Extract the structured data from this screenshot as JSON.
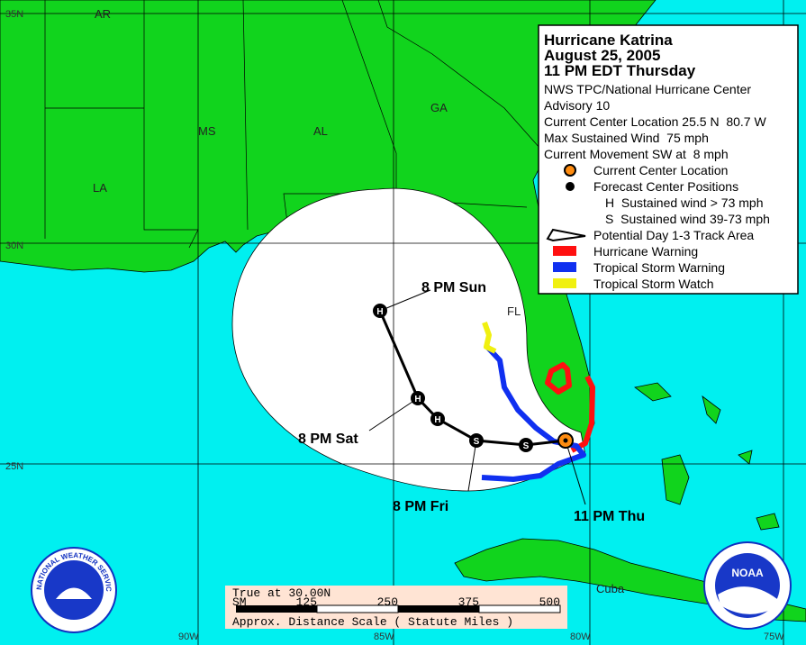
{
  "grid_labels": {
    "lat": [
      "35N",
      "30N",
      "25N"
    ],
    "lon": [
      "90W",
      "85W",
      "80W",
      "75W"
    ]
  },
  "place_labels": [
    "AR",
    "MS",
    "AL",
    "GA",
    "LA",
    "FL",
    "Cuba"
  ],
  "info": {
    "title": [
      "Hurricane Katrina",
      "August 25, 2005",
      "11 PM EDT Thursday"
    ],
    "lines": [
      "NWS TPC/National Hurricane Center",
      "Advisory 10",
      "Current Center Location 25.5 N  80.7 W",
      "Max Sustained Wind  75 mph",
      "Current Movement SW at  8 mph"
    ]
  },
  "legend": [
    "Current Center Location",
    "Forecast Center Positions",
    "H  Sustained wind > 73 mph",
    "S  Sustained wind 39-73 mph",
    "Potential Day 1-3 Track Area",
    "Hurricane Warning",
    "Tropical Storm Warning",
    "Tropical Storm Watch"
  ],
  "track": {
    "points": [
      "S",
      "S",
      "H",
      "H",
      "H"
    ],
    "labels": [
      "11 PM Thu",
      "8 PM Fri",
      "8 PM Sat",
      "8 PM Sun"
    ]
  },
  "scale": {
    "note": "True at 30.00N",
    "unit": "SM",
    "ticks": [
      "125",
      "250",
      "375",
      "500"
    ],
    "caption": "Approx. Distance Scale ( Statute Miles )"
  },
  "logos": {
    "nws": "NATIONAL WEATHER SERVICE",
    "noaa": "NOAA"
  }
}
